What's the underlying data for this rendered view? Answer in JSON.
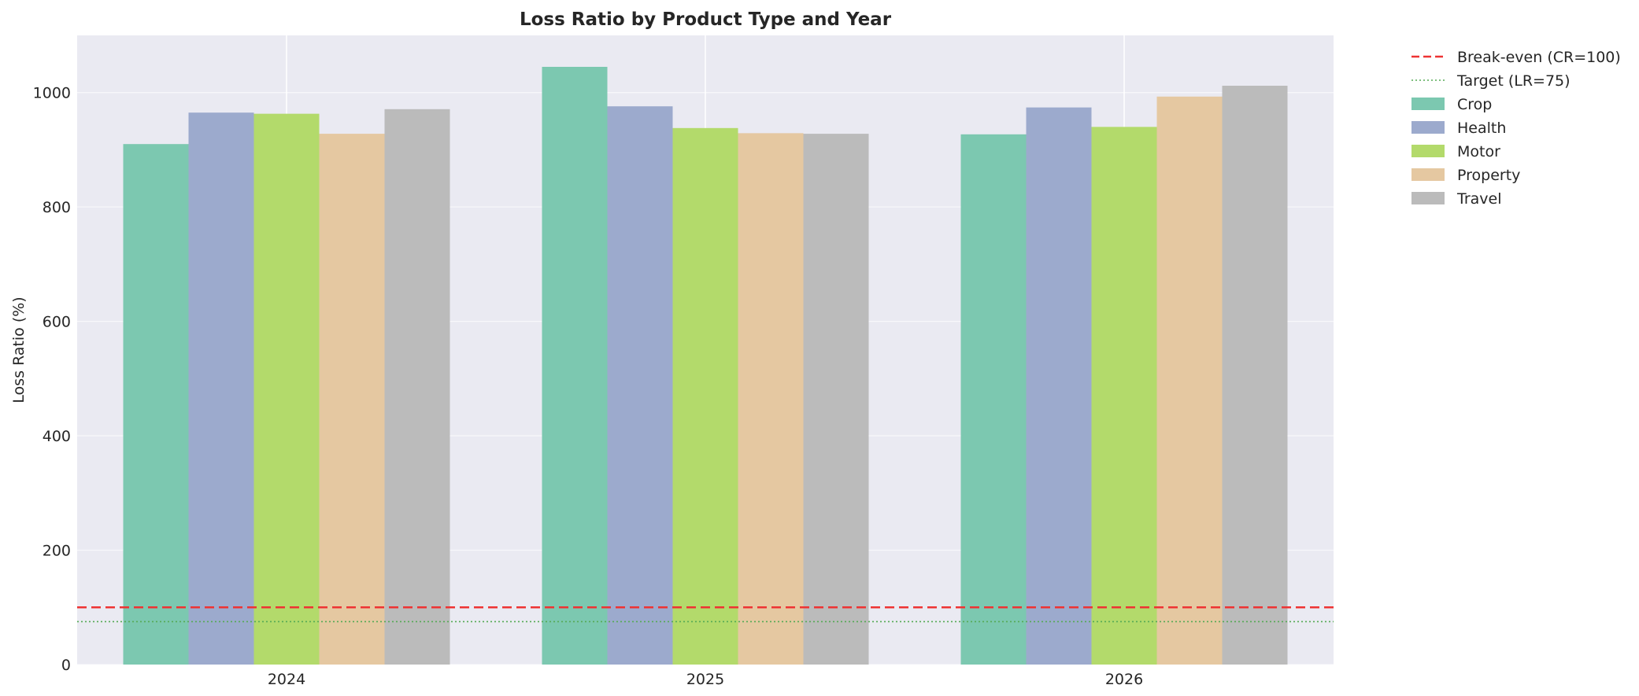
{
  "chart_data": {
    "type": "bar",
    "title": "Loss Ratio by Product Type and Year",
    "xlabel": "",
    "ylabel": "Loss Ratio (%)",
    "categories": [
      "2024",
      "2025",
      "2026"
    ],
    "ylim": [
      0,
      1100
    ],
    "yticks": [
      0,
      200,
      400,
      600,
      800,
      1000
    ],
    "grid": true,
    "legend_position": "outside-top-right",
    "series": [
      {
        "name": "Crop",
        "color": "#7cc8b0",
        "values": [
          910,
          1045,
          927
        ]
      },
      {
        "name": "Health",
        "color": "#9caacd",
        "values": [
          965,
          976,
          974
        ]
      },
      {
        "name": "Motor",
        "color": "#b3da6b",
        "values": [
          963,
          938,
          940
        ]
      },
      {
        "name": "Property",
        "color": "#e5c8a1",
        "values": [
          928,
          929,
          993
        ]
      },
      {
        "name": "Travel",
        "color": "#bbbbbb",
        "values": [
          971,
          928,
          1012
        ]
      }
    ],
    "reference_lines": [
      {
        "name": "Break-even (CR=100)",
        "value": 100,
        "color": "#ee3333",
        "style": "dashed"
      },
      {
        "name": "Target (LR=75)",
        "value": 75,
        "color": "#55aa55",
        "style": "dotted"
      }
    ]
  }
}
